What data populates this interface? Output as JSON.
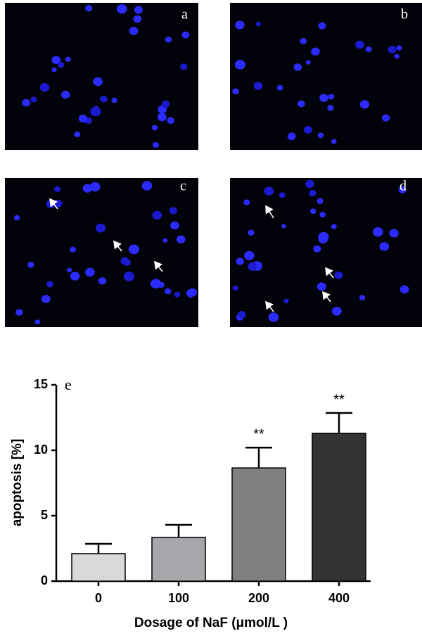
{
  "panels": [
    {
      "label": "a"
    },
    {
      "label": "b"
    },
    {
      "label": "c"
    },
    {
      "label": "d"
    }
  ],
  "chart_data": {
    "type": "bar",
    "panel_label": "e",
    "x_label": "Dosage of NaF (μmol/L )",
    "y_label": "apoptosis [%]",
    "categories": [
      "0",
      "100",
      "200",
      "400"
    ],
    "values": [
      2.1,
      3.35,
      8.65,
      11.3
    ],
    "errors": [
      0.75,
      0.95,
      1.55,
      1.55
    ],
    "significance": [
      null,
      null,
      "**",
      "**"
    ],
    "colors": [
      "#d9d9d9",
      "#a6a6ab",
      "#808080",
      "#333333"
    ],
    "ylim": [
      0,
      15
    ],
    "yticks": [
      0,
      5,
      10,
      15
    ]
  }
}
